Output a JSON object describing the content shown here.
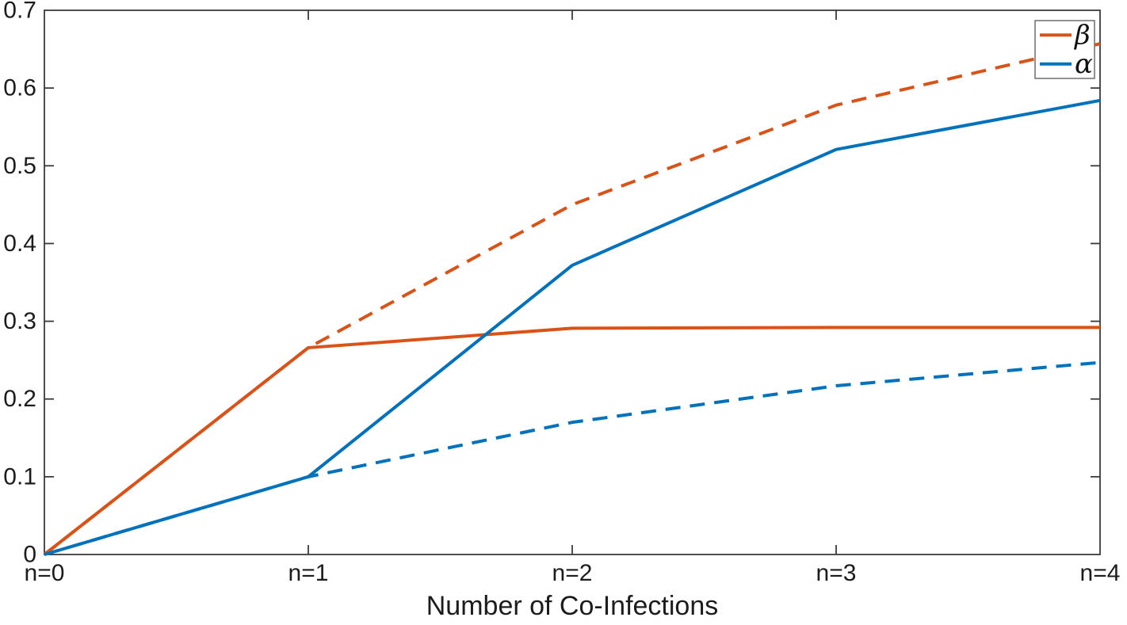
{
  "chart_data": {
    "type": "line",
    "title": "",
    "xlabel": "Number of Co-Infections",
    "ylabel": "",
    "x": [
      0,
      1,
      2,
      3,
      4
    ],
    "x_tick_labels": [
      "n=0",
      "n=1",
      "n=2",
      "n=3",
      "n=4"
    ],
    "y_ticks": [
      0,
      0.1,
      0.2,
      0.3,
      0.4,
      0.5,
      0.6,
      0.7
    ],
    "y_tick_labels": [
      "0",
      "0.1",
      "0.2",
      "0.3",
      "0.4",
      "0.5",
      "0.6",
      "0.7"
    ],
    "xlim": [
      0,
      4
    ],
    "ylim": [
      0,
      0.7
    ],
    "grid": false,
    "box": true,
    "legend_position": "top-right",
    "series": [
      {
        "name": "beta-dashed",
        "legend": null,
        "color": "#D95319",
        "style": "dashed",
        "values": [
          0,
          0.266,
          0.45,
          0.578,
          0.657
        ]
      },
      {
        "name": "alpha-dashed",
        "legend": null,
        "color": "#0072BD",
        "style": "dashed",
        "values": [
          0,
          0.1,
          0.17,
          0.217,
          0.247
        ]
      },
      {
        "name": "beta-solid",
        "legend": "β",
        "color": "#D95319",
        "style": "solid",
        "values": [
          0,
          0.266,
          0.291,
          0.292,
          0.292
        ]
      },
      {
        "name": "alpha-solid",
        "legend": "α",
        "color": "#0072BD",
        "style": "solid",
        "values": [
          0,
          0.1,
          0.372,
          0.521,
          0.584
        ]
      }
    ],
    "colors": {
      "blue": "#0072BD",
      "orange": "#D95319",
      "axis": "#3a3a3a",
      "text": "#1c1c1c",
      "legend_border": "#6e6e6e",
      "background": "#ffffff"
    }
  }
}
